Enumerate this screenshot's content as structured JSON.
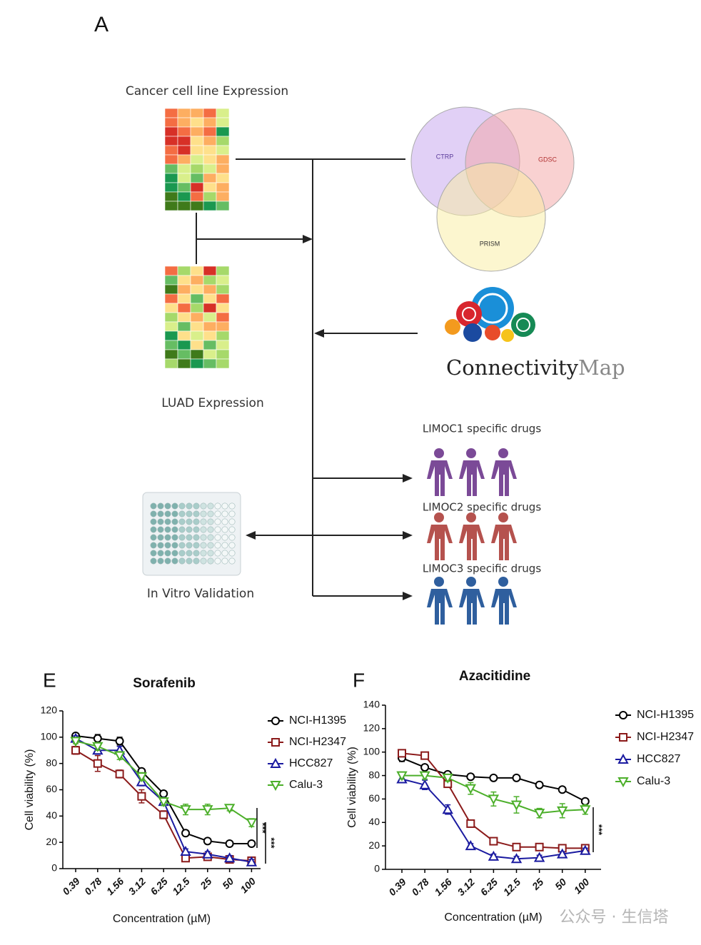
{
  "diagram": {
    "panel": "A",
    "cancer_label": "Cancer cell line Expression",
    "luad_label": "LUAD Expression",
    "validation_label": "In Vitro Validation",
    "venn": [
      "CTRP",
      "GDSC",
      "PRISM"
    ],
    "cmap": {
      "word1": "Connectivity",
      "word2": "Map"
    },
    "groups": [
      "LIMOC1 specific drugs",
      "LIMOC2 specific drugs",
      "LIMOC3 specific drugs"
    ]
  },
  "chart_data": [
    {
      "type": "line",
      "panel": "E",
      "title": "Sorafenib",
      "y_label": "Cell viability (%)",
      "x_label": "Concentration (µM)",
      "categories": [
        "0.39",
        "0.78",
        "1.56",
        "3.12",
        "6.25",
        "12.5",
        "25",
        "50",
        "100"
      ],
      "ylim": [
        0,
        120
      ],
      "yticks": [
        0,
        20,
        40,
        60,
        80,
        100,
        120
      ],
      "series": [
        {
          "name": "NCI-H1395",
          "color": "#000000",
          "marker": "circle",
          "values": [
            101,
            99,
            97,
            74,
            57,
            27,
            21,
            19,
            19
          ],
          "errors": [
            2,
            3,
            3,
            2,
            2,
            2,
            2,
            2,
            2
          ]
        },
        {
          "name": "NCI-H2347",
          "color": "#8b1a1a",
          "marker": "square",
          "values": [
            90,
            80,
            72,
            55,
            41,
            8,
            9,
            7,
            6
          ],
          "errors": [
            3,
            6,
            3,
            5,
            3,
            2,
            2,
            2,
            2
          ]
        },
        {
          "name": "HCC827",
          "color": "#1a1aa0",
          "marker": "triangle-up",
          "values": [
            99,
            90,
            90,
            66,
            51,
            13,
            11,
            8,
            5
          ],
          "errors": [
            2,
            3,
            3,
            3,
            3,
            2,
            2,
            2,
            2
          ]
        },
        {
          "name": "Calu-3",
          "color": "#4caf2a",
          "marker": "triangle-down",
          "values": [
            97,
            93,
            86,
            70,
            51,
            45,
            45,
            46,
            35
          ],
          "errors": [
            2,
            3,
            3,
            3,
            3,
            4,
            4,
            2,
            3
          ]
        }
      ],
      "annotations": [
        "***",
        "***"
      ]
    },
    {
      "type": "line",
      "panel": "F",
      "title": "Azacitidine",
      "y_label": "Cell viability (%)",
      "x_label": "Concentration (µM)",
      "categories": [
        "0.39",
        "0.78",
        "1.56",
        "3.12",
        "6.25",
        "12.5",
        "25",
        "50",
        "100"
      ],
      "ylim": [
        0,
        140
      ],
      "yticks": [
        0,
        20,
        40,
        60,
        80,
        100,
        120,
        140
      ],
      "series": [
        {
          "name": "NCI-H1395",
          "color": "#000000",
          "marker": "circle",
          "values": [
            95,
            87,
            81,
            79,
            78,
            78,
            72,
            68,
            58
          ],
          "errors": [
            3,
            2,
            2,
            2,
            2,
            2,
            2,
            2,
            2
          ]
        },
        {
          "name": "NCI-H2347",
          "color": "#8b1a1a",
          "marker": "square",
          "values": [
            99,
            97,
            73,
            39,
            24,
            19,
            19,
            18,
            18
          ],
          "errors": [
            3,
            2,
            3,
            2,
            2,
            2,
            2,
            2,
            2
          ]
        },
        {
          "name": "HCC827",
          "color": "#1a1aa0",
          "marker": "triangle-up",
          "values": [
            77,
            72,
            51,
            20,
            11,
            9,
            10,
            13,
            16
          ],
          "errors": [
            3,
            4,
            4,
            2,
            2,
            2,
            2,
            2,
            2
          ]
        },
        {
          "name": "Calu-3",
          "color": "#4caf2a",
          "marker": "triangle-down",
          "values": [
            80,
            80,
            78,
            69,
            60,
            55,
            48,
            50,
            51
          ],
          "errors": [
            3,
            3,
            3,
            5,
            6,
            7,
            4,
            6,
            4
          ]
        }
      ],
      "annotations": [
        "***"
      ]
    }
  ],
  "watermark": "公众号 · 生信塔"
}
